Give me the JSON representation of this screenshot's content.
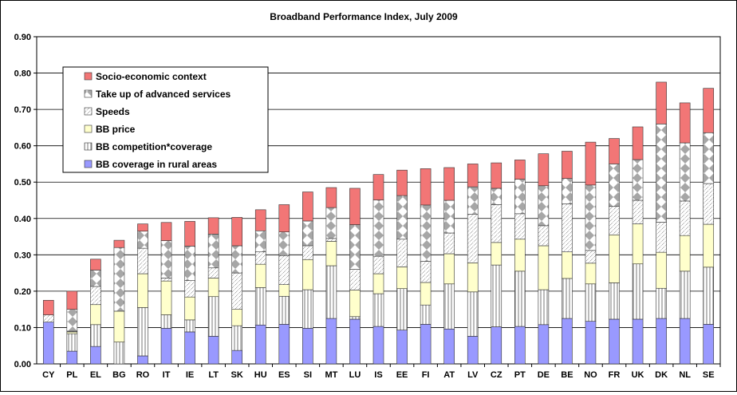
{
  "chart_data": {
    "type": "bar",
    "stacked": true,
    "title": "Broadband Performance Index, July 2009",
    "xlabel": "",
    "ylabel": "",
    "ylim": [
      0,
      0.9
    ],
    "yticks": [
      "0.00",
      "0.10",
      "0.20",
      "0.30",
      "0.40",
      "0.50",
      "0.60",
      "0.70",
      "0.80",
      "0.90"
    ],
    "grid": true,
    "legend_position": "top-left",
    "categories": [
      "CY",
      "PL",
      "EL",
      "BG",
      "RO",
      "IT",
      "IE",
      "LT",
      "SK",
      "HU",
      "ES",
      "SI",
      "MT",
      "LU",
      "IS",
      "EE",
      "FI",
      "AT",
      "LV",
      "CZ",
      "PT",
      "DE",
      "BE",
      "NO",
      "FR",
      "UK",
      "DK",
      "NL",
      "SE"
    ],
    "series": [
      {
        "name": "BB coverage in rural areas",
        "color": "#9999FF",
        "pattern": "solid",
        "values": [
          0.115,
          0.035,
          0.048,
          0.0,
          0.022,
          0.098,
          0.088,
          0.076,
          0.037,
          0.107,
          0.109,
          0.098,
          0.125,
          0.123,
          0.103,
          0.093,
          0.109,
          0.096,
          0.076,
          0.102,
          0.103,
          0.108,
          0.125,
          0.117,
          0.123,
          0.123,
          0.125,
          0.125,
          0.109
        ]
      },
      {
        "name": "BB competition*coverage",
        "color": "#FFFFFF",
        "pattern": "vlines",
        "values": [
          0.0,
          0.048,
          0.06,
          0.06,
          0.133,
          0.037,
          0.033,
          0.109,
          0.068,
          0.103,
          0.077,
          0.106,
          0.145,
          0.007,
          0.09,
          0.114,
          0.053,
          0.124,
          0.122,
          0.17,
          0.152,
          0.096,
          0.11,
          0.103,
          0.1,
          0.152,
          0.083,
          0.13,
          0.157
        ]
      },
      {
        "name": "BB price",
        "color": "#FFFFCC",
        "pattern": "solid",
        "values": [
          0.0,
          0.005,
          0.055,
          0.085,
          0.093,
          0.093,
          0.063,
          0.051,
          0.045,
          0.064,
          0.032,
          0.083,
          0.067,
          0.073,
          0.055,
          0.06,
          0.062,
          0.083,
          0.08,
          0.062,
          0.088,
          0.121,
          0.073,
          0.057,
          0.132,
          0.11,
          0.099,
          0.098,
          0.118
        ]
      },
      {
        "name": "Speeds",
        "color": "#FFFFFF",
        "pattern": "dots",
        "values": [
          0.02,
          0.002,
          0.05,
          0.0,
          0.07,
          0.008,
          0.045,
          0.028,
          0.1,
          0.034,
          0.08,
          0.038,
          0.008,
          0.057,
          0.048,
          0.076,
          0.058,
          0.057,
          0.134,
          0.104,
          0.07,
          0.055,
          0.132,
          0.035,
          0.078,
          0.065,
          0.083,
          0.095,
          0.112
        ]
      },
      {
        "name": "Take up of advanced services",
        "color": "#BFBFBF",
        "pattern": "diamonds",
        "values": [
          0.0,
          0.06,
          0.045,
          0.175,
          0.047,
          0.103,
          0.095,
          0.093,
          0.075,
          0.058,
          0.065,
          0.068,
          0.085,
          0.123,
          0.155,
          0.12,
          0.155,
          0.09,
          0.075,
          0.045,
          0.095,
          0.11,
          0.07,
          0.18,
          0.117,
          0.112,
          0.27,
          0.16,
          0.14
        ]
      },
      {
        "name": "Socio-economic context",
        "color": "#F27676",
        "pattern": "solid",
        "values": [
          0.04,
          0.05,
          0.03,
          0.02,
          0.02,
          0.05,
          0.068,
          0.045,
          0.078,
          0.058,
          0.075,
          0.08,
          0.055,
          0.1,
          0.07,
          0.07,
          0.1,
          0.09,
          0.063,
          0.07,
          0.053,
          0.088,
          0.075,
          0.118,
          0.07,
          0.09,
          0.115,
          0.11,
          0.122
        ]
      }
    ]
  }
}
